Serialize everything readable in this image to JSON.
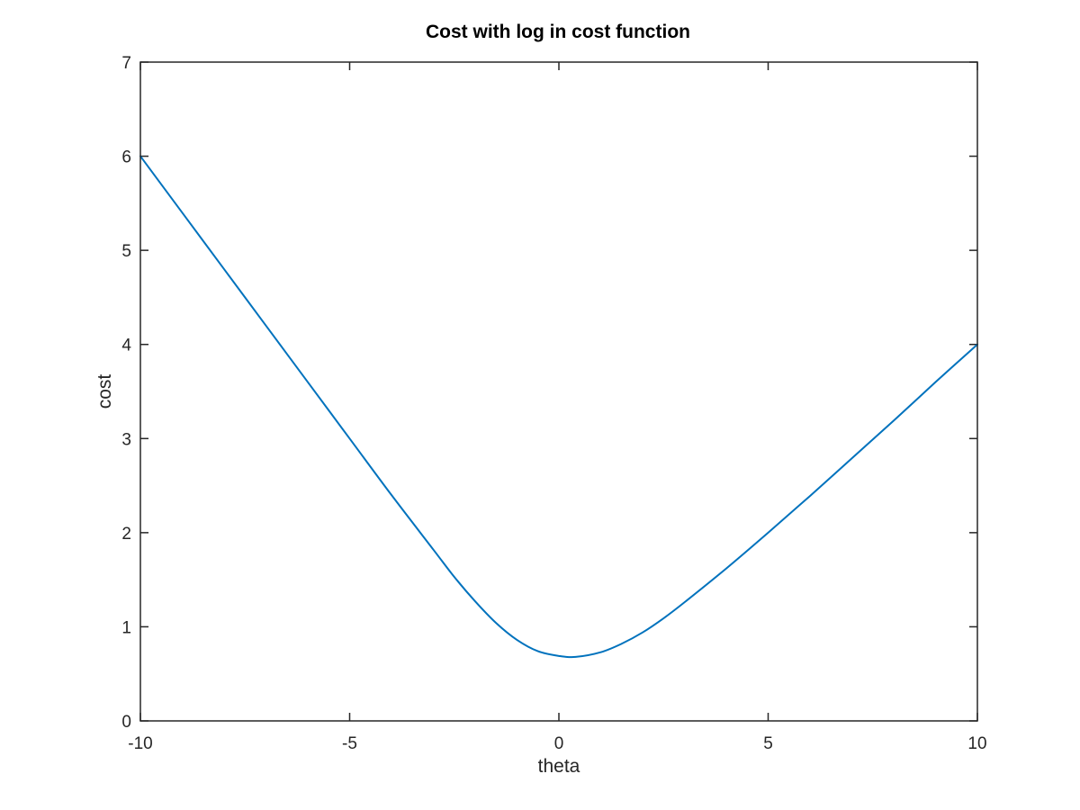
{
  "chart_data": {
    "type": "line",
    "title": "Cost with log in cost function",
    "xlabel": "theta",
    "ylabel": "cost",
    "xlim": [
      -10,
      10
    ],
    "ylim": [
      0,
      7
    ],
    "xticks": [
      -10,
      -5,
      0,
      5,
      10
    ],
    "yticks": [
      0,
      1,
      2,
      3,
      4,
      5,
      6,
      7
    ],
    "xtick_labels": [
      "-10",
      "-5",
      "0",
      "5",
      "10"
    ],
    "ytick_labels": [
      "0",
      "1",
      "2",
      "3",
      "4",
      "5",
      "6",
      "7"
    ],
    "grid": false,
    "series": [
      {
        "color": "#0072bd",
        "x": [
          -10,
          -9,
          -8,
          -7,
          -6,
          -5,
          -4,
          -3,
          -2.5,
          -2,
          -1.5,
          -1,
          -0.5,
          0,
          0.4,
          1,
          1.5,
          2,
          2.5,
          3,
          4,
          5,
          6,
          7,
          8,
          9,
          10
        ],
        "y": [
          6.0,
          5.4,
          4.8,
          4.2,
          3.6,
          3.0,
          2.4,
          1.82,
          1.53,
          1.27,
          1.04,
          0.86,
          0.74,
          0.69,
          0.68,
          0.73,
          0.82,
          0.94,
          1.09,
          1.26,
          1.62,
          2.0,
          2.39,
          2.79,
          3.19,
          3.6,
          4.0
        ]
      }
    ]
  }
}
